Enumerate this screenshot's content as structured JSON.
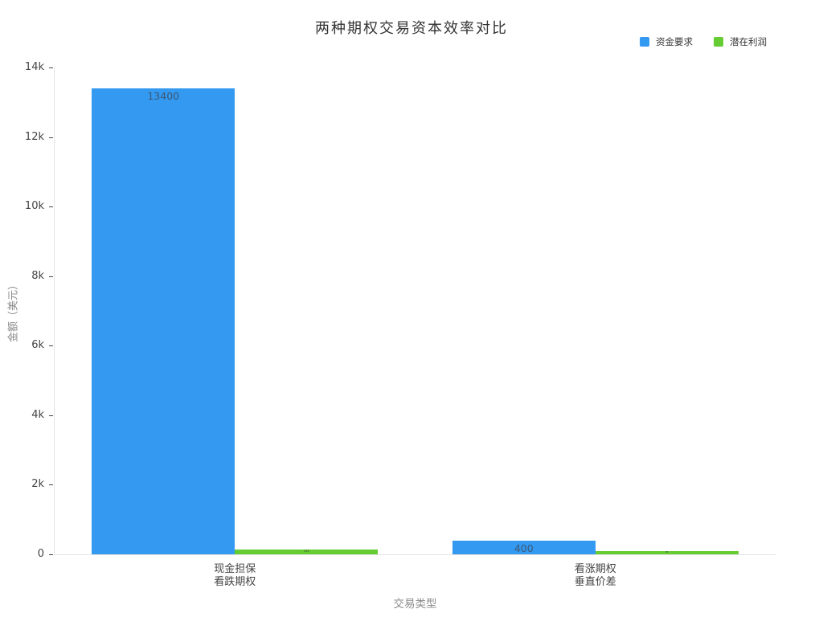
{
  "chart_data": {
    "type": "bar",
    "title": "两种期权交易资本效率对比",
    "xlabel": "交易类型",
    "ylabel": "金额（美元）",
    "categories": [
      "现金担保\n看跌期权",
      "看涨期权\n垂直价差"
    ],
    "series": [
      {
        "name": "资金要求",
        "color": "#3399f1",
        "values": [
          13400,
          400
        ]
      },
      {
        "name": "潜在利润",
        "color": "#66cc33",
        "values": [
          135,
          85
        ]
      }
    ],
    "bar_value_labels_shown": true,
    "ylim": [
      0,
      14000
    ],
    "yticks": [
      {
        "value": 0,
        "label": "0"
      },
      {
        "value": 2000,
        "label": "2k"
      },
      {
        "value": 4000,
        "label": "4k"
      },
      {
        "value": 6000,
        "label": "6k"
      },
      {
        "value": 8000,
        "label": "8k"
      },
      {
        "value": 10000,
        "label": "10k"
      },
      {
        "value": 12000,
        "label": "12k"
      },
      {
        "value": 14000,
        "label": "14k"
      }
    ],
    "grid": false,
    "legend_position": "top-right",
    "colors": {
      "background": "#ffffff",
      "axis_line": "#e3e3e3",
      "tick_text": "#444444",
      "axis_title_text": "#8a8a8a",
      "title_text": "#333333",
      "bar_label_blue": "#3d5875",
      "bar_label_green": "#333333"
    }
  }
}
